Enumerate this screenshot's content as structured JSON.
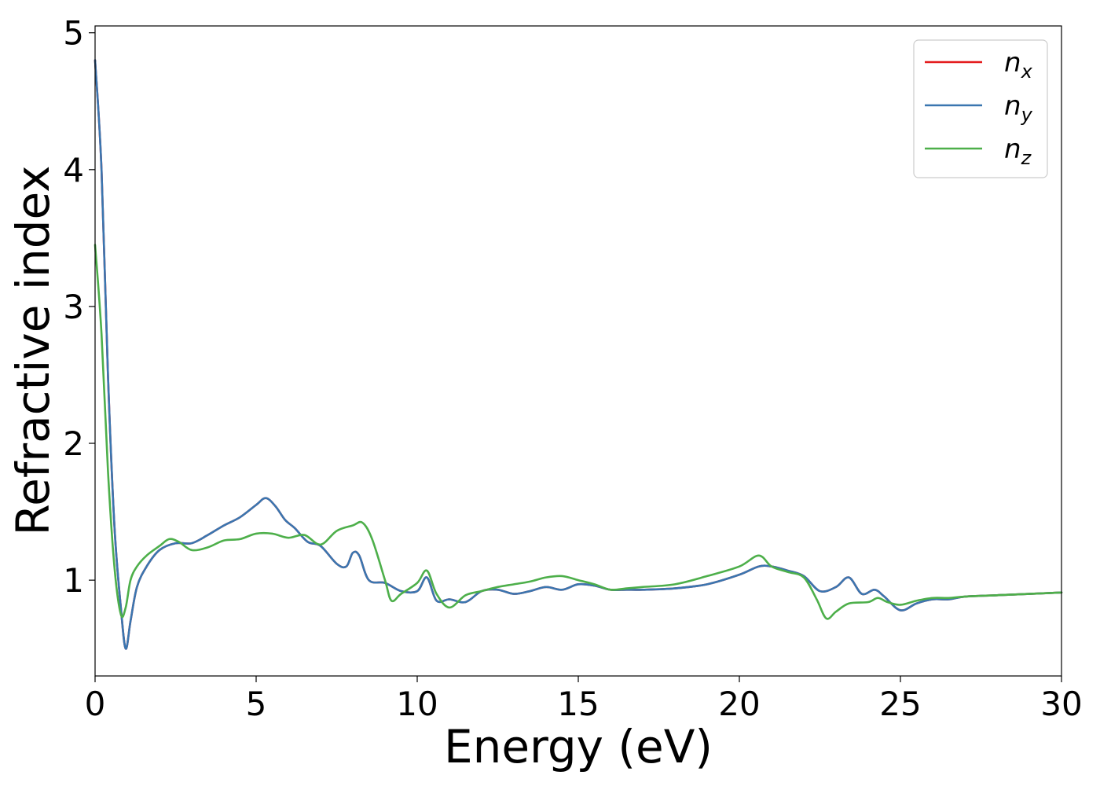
{
  "chart_data": {
    "type": "line",
    "xlabel": "Energy (eV)",
    "ylabel": "Refractive index",
    "xlim": [
      0,
      30
    ],
    "ylim": [
      0.3,
      5.05
    ],
    "xticks": [
      0,
      5,
      10,
      15,
      20,
      25,
      30
    ],
    "yticks": [
      1,
      2,
      3,
      4,
      5
    ],
    "grid": false,
    "legend_position": "top-right",
    "series": [
      {
        "name": "n_x",
        "label_main": "n",
        "label_sub": "x",
        "color": "#e41a1c",
        "x": [
          0,
          0.2,
          0.4,
          0.6,
          0.8,
          0.95,
          1.1,
          1.3,
          1.6,
          2.0,
          2.5,
          3.0,
          3.5,
          4.0,
          4.5,
          5.0,
          5.3,
          5.6,
          5.9,
          6.2,
          6.6,
          7.0,
          7.5,
          7.8,
          8.0,
          8.2,
          8.5,
          9.0,
          9.5,
          10.0,
          10.3,
          10.6,
          11.0,
          11.5,
          12.0,
          12.5,
          13.0,
          13.5,
          14.0,
          14.5,
          15.0,
          15.5,
          16.0,
          16.5,
          17.0,
          18.0,
          19.0,
          20.0,
          20.6,
          21.0,
          21.5,
          22.0,
          22.5,
          23.0,
          23.4,
          23.8,
          24.2,
          24.5,
          25.0,
          25.5,
          26.0,
          26.5,
          27.0,
          28.0,
          29.0,
          30.0
        ],
        "values": [
          4.8,
          4.0,
          2.5,
          1.4,
          0.8,
          0.5,
          0.7,
          0.95,
          1.1,
          1.22,
          1.27,
          1.27,
          1.33,
          1.4,
          1.46,
          1.55,
          1.6,
          1.54,
          1.44,
          1.38,
          1.28,
          1.25,
          1.12,
          1.1,
          1.2,
          1.18,
          1.0,
          0.98,
          0.92,
          0.92,
          1.02,
          0.85,
          0.86,
          0.84,
          0.92,
          0.93,
          0.9,
          0.92,
          0.95,
          0.93,
          0.97,
          0.96,
          0.93,
          0.93,
          0.93,
          0.94,
          0.97,
          1.04,
          1.1,
          1.1,
          1.07,
          1.03,
          0.92,
          0.95,
          1.02,
          0.9,
          0.93,
          0.88,
          0.78,
          0.83,
          0.86,
          0.86,
          0.88,
          0.89,
          0.9,
          0.91
        ]
      },
      {
        "name": "n_y",
        "label_main": "n",
        "label_sub": "y",
        "color": "#3a76b0",
        "x": [
          0,
          0.2,
          0.4,
          0.6,
          0.8,
          0.95,
          1.1,
          1.3,
          1.6,
          2.0,
          2.5,
          3.0,
          3.5,
          4.0,
          4.5,
          5.0,
          5.3,
          5.6,
          5.9,
          6.2,
          6.6,
          7.0,
          7.5,
          7.8,
          8.0,
          8.2,
          8.5,
          9.0,
          9.5,
          10.0,
          10.3,
          10.6,
          11.0,
          11.5,
          12.0,
          12.5,
          13.0,
          13.5,
          14.0,
          14.5,
          15.0,
          15.5,
          16.0,
          16.5,
          17.0,
          18.0,
          19.0,
          20.0,
          20.6,
          21.0,
          21.5,
          22.0,
          22.5,
          23.0,
          23.4,
          23.8,
          24.2,
          24.5,
          25.0,
          25.5,
          26.0,
          26.5,
          27.0,
          28.0,
          29.0,
          30.0
        ],
        "values": [
          4.8,
          4.0,
          2.5,
          1.4,
          0.8,
          0.5,
          0.7,
          0.95,
          1.1,
          1.22,
          1.27,
          1.27,
          1.33,
          1.4,
          1.46,
          1.55,
          1.6,
          1.54,
          1.44,
          1.38,
          1.28,
          1.25,
          1.12,
          1.1,
          1.2,
          1.18,
          1.0,
          0.98,
          0.92,
          0.92,
          1.02,
          0.85,
          0.86,
          0.84,
          0.92,
          0.93,
          0.9,
          0.92,
          0.95,
          0.93,
          0.97,
          0.96,
          0.93,
          0.93,
          0.93,
          0.94,
          0.97,
          1.04,
          1.1,
          1.1,
          1.07,
          1.03,
          0.92,
          0.95,
          1.02,
          0.9,
          0.93,
          0.88,
          0.78,
          0.83,
          0.86,
          0.86,
          0.88,
          0.89,
          0.9,
          0.91
        ]
      },
      {
        "name": "n_z",
        "label_main": "n",
        "label_sub": "z",
        "color": "#4daf4a",
        "x": [
          0,
          0.2,
          0.4,
          0.6,
          0.8,
          0.95,
          1.1,
          1.3,
          1.6,
          2.0,
          2.3,
          2.6,
          3.0,
          3.5,
          4.0,
          4.5,
          5.0,
          5.5,
          6.0,
          6.5,
          7.0,
          7.5,
          8.0,
          8.3,
          8.6,
          9.0,
          9.2,
          9.5,
          10.0,
          10.3,
          10.6,
          11.0,
          11.5,
          12.0,
          12.5,
          13.0,
          13.5,
          14.0,
          14.5,
          15.0,
          15.5,
          16.0,
          16.5,
          17.0,
          18.0,
          19.0,
          20.0,
          20.6,
          21.0,
          21.5,
          22.0,
          22.4,
          22.7,
          23.0,
          23.4,
          24.0,
          24.3,
          24.6,
          25.0,
          25.5,
          26.0,
          26.5,
          27.0,
          28.0,
          29.0,
          30.0
        ],
        "values": [
          3.45,
          2.8,
          1.8,
          1.1,
          0.75,
          0.8,
          1.0,
          1.1,
          1.18,
          1.25,
          1.3,
          1.28,
          1.22,
          1.24,
          1.29,
          1.3,
          1.34,
          1.34,
          1.31,
          1.33,
          1.26,
          1.36,
          1.4,
          1.42,
          1.3,
          1.0,
          0.85,
          0.9,
          0.98,
          1.07,
          0.9,
          0.8,
          0.89,
          0.92,
          0.95,
          0.97,
          0.99,
          1.02,
          1.03,
          1.0,
          0.97,
          0.93,
          0.94,
          0.95,
          0.97,
          1.03,
          1.1,
          1.18,
          1.1,
          1.06,
          1.02,
          0.86,
          0.72,
          0.77,
          0.83,
          0.84,
          0.87,
          0.84,
          0.82,
          0.85,
          0.87,
          0.87,
          0.88,
          0.89,
          0.9,
          0.91
        ]
      }
    ]
  }
}
